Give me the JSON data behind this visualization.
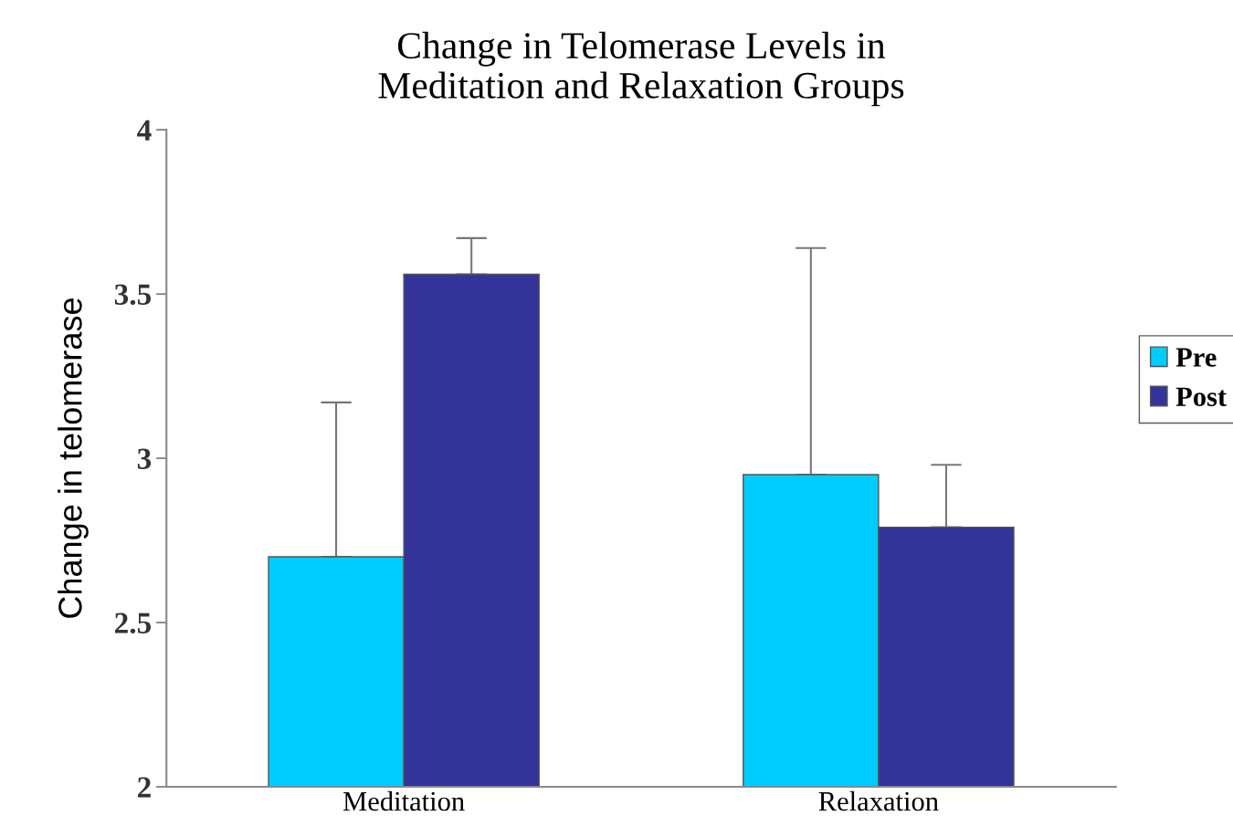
{
  "chart_data": {
    "type": "bar",
    "title": "Change in Telomerase Levels in\nMeditation and Relaxation Groups",
    "ylabel": "Change in telomerase",
    "categories": [
      "Meditation",
      "Relaxation"
    ],
    "series": [
      {
        "name": "Pre",
        "color": "#00ccff",
        "values": [
          2.7,
          2.95
        ],
        "errors": [
          [
            2.7,
            3.17
          ],
          [
            2.95,
            3.64
          ]
        ]
      },
      {
        "name": "Post",
        "color": "#333399",
        "values": [
          3.56,
          2.79
        ],
        "errors": [
          [
            3.56,
            3.67
          ],
          [
            2.79,
            2.98
          ]
        ]
      }
    ],
    "ylim": [
      2,
      4
    ],
    "yticks": [
      2,
      2.5,
      3,
      3.5,
      4
    ],
    "grid": false,
    "legend": "right"
  }
}
